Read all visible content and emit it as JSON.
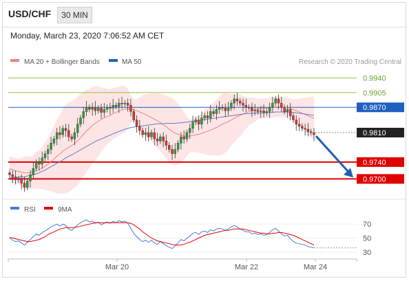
{
  "header": {
    "pair": "USD/CHF",
    "timeframe": "30 MIN",
    "datetime": "Monday, March 23, 2020 7:06:52 AM CET"
  },
  "colors": {
    "bull": "#2e9e3e",
    "bear": "#e03030",
    "ma20": "#f08080",
    "ma50": "#5b7fc7",
    "band": "#fde0e0",
    "support": "#e00000",
    "resistance_blue": "#1f5fbf",
    "resistance_green": "#8dc63f",
    "current": "#222222",
    "arrow": "#2060b0",
    "rsi": "#4a78d8",
    "rsi_ma": "#e00000"
  },
  "chart_data": [
    {
      "type": "candlestick",
      "legend": [
        {
          "name": "MA 20 + Bollinger Bands",
          "color": "#f08080"
        },
        {
          "name": "MA 50",
          "color": "#1f5fbf"
        }
      ],
      "watermark": "Research © 2020 Trading Central",
      "x_ticks": [
        "Mar 20",
        "Mar 22",
        "Mar 24"
      ],
      "ylim": [
        0.9655,
        0.9965
      ],
      "levels": [
        {
          "value": 0.994,
          "label": "0.9940",
          "kind": "resistance",
          "color": "#8dc63f"
        },
        {
          "value": 0.9905,
          "label": "0.9905",
          "kind": "resistance",
          "color": "#8dc63f"
        },
        {
          "value": 0.987,
          "label": "0.9870",
          "kind": "pivot",
          "color": "#1f5fbf"
        },
        {
          "value": 0.981,
          "label": "0.9810",
          "kind": "current",
          "color": "#222222"
        },
        {
          "value": 0.974,
          "label": "0.9740",
          "kind": "support",
          "color": "#e00000"
        },
        {
          "value": 0.97,
          "label": "0.9700",
          "kind": "support",
          "color": "#e00000"
        }
      ],
      "close": [
        0.971,
        0.9705,
        0.9698,
        0.97,
        0.969,
        0.968,
        0.9695,
        0.971,
        0.9725,
        0.974,
        0.9735,
        0.975,
        0.976,
        0.977,
        0.9785,
        0.9795,
        0.981,
        0.9805,
        0.982,
        0.9815,
        0.98,
        0.9795,
        0.981,
        0.983,
        0.9845,
        0.986,
        0.987,
        0.9865,
        0.987,
        0.9862,
        0.9868,
        0.9858,
        0.9865,
        0.987,
        0.9868,
        0.9875,
        0.9872,
        0.988,
        0.9878,
        0.988,
        0.9875,
        0.986,
        0.984,
        0.9825,
        0.9815,
        0.9805,
        0.981,
        0.98,
        0.981,
        0.9795,
        0.979,
        0.98,
        0.979,
        0.978,
        0.977,
        0.976,
        0.977,
        0.9785,
        0.98,
        0.9795,
        0.981,
        0.982,
        0.9835,
        0.984,
        0.983,
        0.9845,
        0.985,
        0.9845,
        0.986,
        0.9855,
        0.9865,
        0.987,
        0.9868,
        0.9862,
        0.9868,
        0.988,
        0.989,
        0.9885,
        0.988,
        0.9875,
        0.987,
        0.987,
        0.9862,
        0.9863,
        0.986,
        0.9862,
        0.9857,
        0.986,
        0.987,
        0.988,
        0.989,
        0.988,
        0.987,
        0.986,
        0.9865,
        0.985,
        0.984,
        0.983,
        0.9825,
        0.982,
        0.9818,
        0.9812,
        0.981,
        0.9805
      ],
      "ma20": [
        0.9725,
        0.9722,
        0.9719,
        0.9718,
        0.9716,
        0.9714,
        0.9714,
        0.9715,
        0.9717,
        0.972,
        0.9722,
        0.9726,
        0.973,
        0.9735,
        0.9741,
        0.9747,
        0.9754,
        0.9759,
        0.9766,
        0.9771,
        0.9775,
        0.9779,
        0.9784,
        0.9791,
        0.9798,
        0.9806,
        0.9814,
        0.982,
        0.9827,
        0.9832,
        0.9837,
        0.9841,
        0.9845,
        0.9848,
        0.9851,
        0.9855,
        0.9858,
        0.9861,
        0.9864,
        0.9866,
        0.9867,
        0.9866,
        0.9864,
        0.9862,
        0.9859,
        0.9856,
        0.9853,
        0.9849,
        0.9846,
        0.9842,
        0.9838,
        0.9834,
        0.9829,
        0.9824,
        0.9818,
        0.9813,
        0.9809,
        0.9806,
        0.9804,
        0.9802,
        0.9801,
        0.9802,
        0.9803,
        0.9805,
        0.9806,
        0.9808,
        0.9811,
        0.9813,
        0.9816,
        0.9819,
        0.9822,
        0.9826,
        0.983,
        0.9833,
        0.9836,
        0.984,
        0.9844,
        0.9848,
        0.9851,
        0.9854,
        0.9857,
        0.986,
        0.9862,
        0.9864,
        0.9866,
        0.9867,
        0.9868,
        0.9868,
        0.9869,
        0.987,
        0.9871,
        0.9871,
        0.9871,
        0.987,
        0.9869,
        0.9867,
        0.9865,
        0.9862,
        0.9859,
        0.9856,
        0.9853,
        0.985,
        0.9847,
        0.9844
      ],
      "ma50": [
        0.9702,
        0.9703,
        0.9703,
        0.9704,
        0.9705,
        0.9705,
        0.9707,
        0.9708,
        0.971,
        0.9712,
        0.9715,
        0.9718,
        0.9721,
        0.9725,
        0.9729,
        0.9733,
        0.9737,
        0.9741,
        0.9745,
        0.975,
        0.9754,
        0.9757,
        0.9761,
        0.9765,
        0.9769,
        0.9773,
        0.9777,
        0.9781,
        0.9785,
        0.9789,
        0.9792,
        0.9795,
        0.9798,
        0.9801,
        0.9804,
        0.9807,
        0.981,
        0.9813,
        0.9815,
        0.9818,
        0.982,
        0.9822,
        0.9823,
        0.9824,
        0.9825,
        0.9826,
        0.9827,
        0.9828,
        0.9829,
        0.983,
        0.9831,
        0.9831,
        0.9831,
        0.9832,
        0.9832,
        0.9832,
        0.9832,
        0.9833,
        0.9833,
        0.9834,
        0.9835,
        0.9836,
        0.9837,
        0.9838,
        0.9839,
        0.984,
        0.9841,
        0.9842,
        0.9843,
        0.9844,
        0.9845,
        0.9846,
        0.9847,
        0.9848,
        0.9849,
        0.985,
        0.9851,
        0.9852,
        0.9853,
        0.9854,
        0.9855,
        0.9855,
        0.9856,
        0.9856,
        0.9857,
        0.9857,
        0.9857,
        0.9858,
        0.9858,
        0.9858,
        0.9859,
        0.9859,
        0.9859,
        0.9859,
        0.9859,
        0.9858,
        0.9858,
        0.9857,
        0.9856,
        0.9855,
        0.9854,
        0.9853,
        0.9852,
        0.9851
      ]
    },
    {
      "type": "line",
      "legend": [
        {
          "name": "RSI",
          "color": "#4a78d8"
        },
        {
          "name": "9MA",
          "color": "#e00000"
        }
      ],
      "ylim": [
        25,
        78
      ],
      "y_ticks": [
        70,
        50,
        30
      ],
      "rsi": [
        50,
        47,
        45,
        46,
        43,
        40,
        44,
        48,
        52,
        56,
        54,
        58,
        60,
        63,
        66,
        68,
        70,
        67,
        70,
        68,
        63,
        61,
        65,
        69,
        72,
        74,
        76,
        73,
        74,
        71,
        73,
        69,
        71,
        73,
        71,
        74,
        72,
        75,
        73,
        74,
        71,
        64,
        57,
        52,
        48,
        45,
        47,
        44,
        47,
        43,
        41,
        45,
        42,
        39,
        37,
        35,
        39,
        43,
        48,
        46,
        50,
        53,
        57,
        58,
        55,
        59,
        60,
        58,
        62,
        60,
        63,
        64,
        63,
        61,
        63,
        66,
        68,
        66,
        63,
        61,
        59,
        59,
        56,
        57,
        55,
        56,
        54,
        55,
        58,
        62,
        64,
        60,
        56,
        53,
        54,
        49,
        45,
        43,
        42,
        41,
        40,
        38,
        37,
        36
      ],
      "rsi_ma": [
        51,
        50,
        49,
        48,
        47,
        46,
        45,
        45,
        46,
        47,
        48,
        50,
        52,
        55,
        57,
        59,
        61,
        63,
        64,
        65,
        65,
        65,
        65,
        66,
        67,
        68,
        69,
        70,
        71,
        72,
        72,
        72,
        72,
        72,
        72,
        72,
        72,
        72,
        72,
        72,
        72,
        71,
        69,
        66,
        63,
        59,
        56,
        53,
        50,
        48,
        46,
        45,
        44,
        43,
        42,
        41,
        40,
        40,
        40,
        41,
        43,
        44,
        46,
        48,
        50,
        52,
        54,
        55,
        56,
        57,
        58,
        59,
        60,
        61,
        61,
        62,
        63,
        63,
        63,
        63,
        62,
        61,
        60,
        59,
        58,
        57,
        57,
        56,
        56,
        57,
        57,
        58,
        58,
        57,
        56,
        55,
        54,
        52,
        50,
        48,
        46,
        44,
        42,
        40
      ]
    }
  ]
}
